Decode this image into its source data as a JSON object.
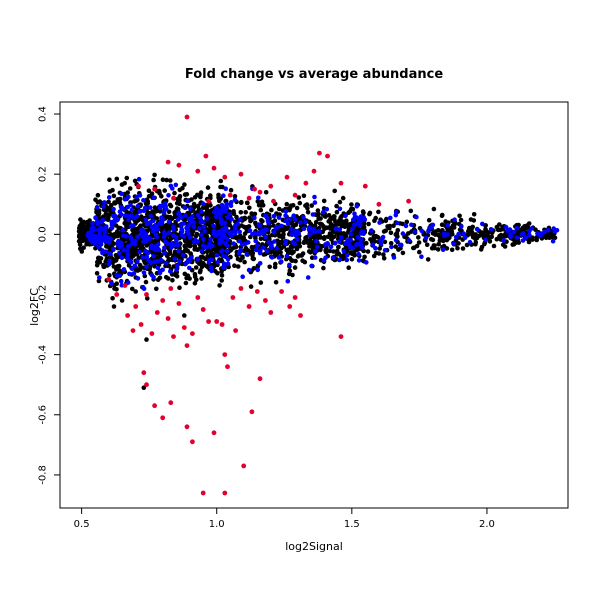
{
  "chart_data": {
    "type": "scatter",
    "title": "Fold change vs average abundance",
    "xlabel": "log2Signal",
    "ylabel": "log2FC",
    "xlim": [
      0.42,
      2.3
    ],
    "ylim": [
      -0.91,
      0.44
    ],
    "xticks": [
      0.5,
      1.0,
      1.5,
      2.0
    ],
    "xtick_labels": [
      "0.5",
      "1.0",
      "1.5",
      "2.0"
    ],
    "yticks": [
      -0.8,
      -0.6,
      -0.4,
      -0.2,
      0.0,
      0.2,
      0.4
    ],
    "ytick_labels": [
      "-0.8",
      "-0.6",
      "-0.4",
      "-0.2",
      "0.0",
      "0.2",
      "0.4"
    ],
    "grid": false,
    "legend": false,
    "colors": {
      "background_points": "#000000",
      "blue_points": "#0000ff",
      "red_points": "#e4002b"
    },
    "series": [
      {
        "color": "#e4002b",
        "points": [
          [
            0.89,
            0.39
          ],
          [
            0.96,
            0.26
          ],
          [
            0.86,
            0.23
          ],
          [
            0.82,
            0.24
          ],
          [
            0.99,
            0.22
          ],
          [
            0.93,
            0.21
          ],
          [
            1.03,
            0.19
          ],
          [
            1.09,
            0.2
          ],
          [
            1.14,
            0.15
          ],
          [
            1.2,
            0.16
          ],
          [
            1.26,
            0.19
          ],
          [
            1.33,
            0.17
          ],
          [
            1.36,
            0.21
          ],
          [
            1.38,
            0.27
          ],
          [
            1.41,
            0.26
          ],
          [
            1.29,
            0.13
          ],
          [
            1.46,
            0.17
          ],
          [
            1.55,
            0.16
          ],
          [
            1.6,
            0.1
          ],
          [
            1.71,
            0.11
          ],
          [
            0.71,
            0.16
          ],
          [
            0.77,
            0.15
          ],
          [
            0.84,
            0.12
          ],
          [
            0.97,
            0.11
          ],
          [
            1.05,
            0.13
          ],
          [
            1.12,
            0.12
          ],
          [
            1.16,
            0.14
          ],
          [
            1.21,
            0.11
          ],
          [
            0.73,
            -0.46
          ],
          [
            0.74,
            -0.5
          ],
          [
            0.77,
            -0.57
          ],
          [
            0.8,
            -0.61
          ],
          [
            0.83,
            -0.56
          ],
          [
            0.89,
            -0.64
          ],
          [
            0.91,
            -0.69
          ],
          [
            0.95,
            -0.86
          ],
          [
            0.99,
            -0.66
          ],
          [
            1.03,
            -0.86
          ],
          [
            1.1,
            -0.77
          ],
          [
            1.13,
            -0.59
          ],
          [
            1.16,
            -0.48
          ],
          [
            1.04,
            -0.44
          ],
          [
            1.03,
            -0.4
          ],
          [
            0.89,
            -0.37
          ],
          [
            0.84,
            -0.34
          ],
          [
            0.88,
            -0.31
          ],
          [
            0.91,
            -0.33
          ],
          [
            0.97,
            -0.29
          ],
          [
            1.0,
            -0.29
          ],
          [
            1.02,
            -0.3
          ],
          [
            1.07,
            -0.32
          ],
          [
            1.12,
            -0.24
          ],
          [
            1.18,
            -0.22
          ],
          [
            1.2,
            -0.26
          ],
          [
            1.24,
            -0.19
          ],
          [
            1.27,
            -0.24
          ],
          [
            1.29,
            -0.21
          ],
          [
            1.31,
            -0.27
          ],
          [
            1.46,
            -0.34
          ],
          [
            0.69,
            -0.32
          ],
          [
            0.67,
            -0.27
          ],
          [
            0.7,
            -0.24
          ],
          [
            0.74,
            -0.2
          ],
          [
            0.78,
            -0.26
          ],
          [
            0.8,
            -0.22
          ],
          [
            0.83,
            -0.18
          ],
          [
            0.86,
            -0.23
          ],
          [
            0.93,
            -0.21
          ],
          [
            0.95,
            -0.25
          ],
          [
            1.06,
            -0.21
          ],
          [
            1.09,
            -0.18
          ],
          [
            1.15,
            -0.19
          ],
          [
            0.66,
            -0.17
          ],
          [
            0.6,
            -0.15
          ],
          [
            0.63,
            -0.2
          ],
          [
            0.72,
            -0.3
          ],
          [
            0.76,
            -0.33
          ],
          [
            0.82,
            -0.28
          ]
        ]
      }
    ]
  }
}
